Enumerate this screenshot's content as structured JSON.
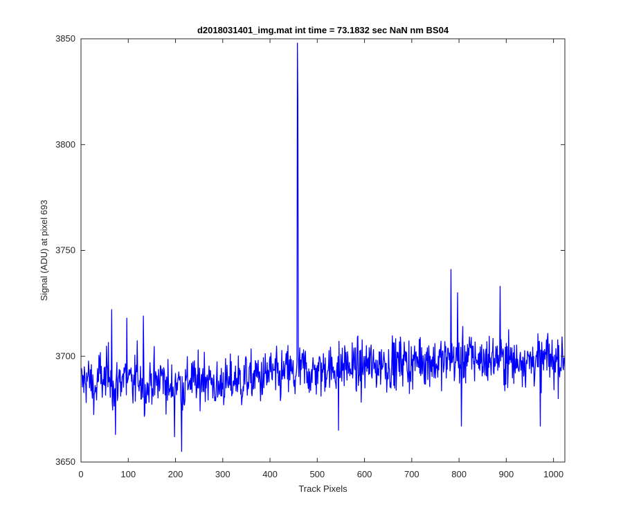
{
  "chart_data": {
    "type": "line",
    "title": "d2018031401_img.mat int time = 73.1832 sec  NaN nm BS04",
    "xlabel": "Track Pixels",
    "ylabel": "Signal (ADU) at pixel 693",
    "xlim": [
      0,
      1024
    ],
    "ylim": [
      3650,
      3850
    ],
    "xticks": [
      0,
      100,
      200,
      300,
      400,
      500,
      600,
      700,
      800,
      900,
      1000
    ],
    "yticks": [
      3650,
      3700,
      3750,
      3800,
      3850
    ],
    "grid": false,
    "legend": "none",
    "colors": {
      "line": "#0000ff",
      "axes": "#262626",
      "background": "#ffffff"
    },
    "series": [
      {
        "x_step": 10,
        "x_start": 0,
        "sampled_values": [
          3686,
          3690,
          3688,
          3683,
          3692,
          3687,
          3695,
          3682,
          3689,
          3691,
          3688,
          3685,
          3693,
          3687,
          3684,
          3690,
          3686,
          3691,
          3688,
          3683,
          3689,
          3687,
          3685,
          3690,
          3688,
          3686,
          3692,
          3689,
          3687,
          3684,
          3689,
          3686,
          3688,
          3690,
          3687,
          3691,
          3688,
          3692,
          3689,
          3690,
          3693,
          3691,
          3689,
          3692,
          3694,
          3690,
          3692,
          3695,
          3693,
          3691,
          3694,
          3692,
          3696,
          3693,
          3695,
          3694,
          3697,
          3694,
          3696,
          3693,
          3695,
          3697,
          3694,
          3696,
          3698,
          3695,
          3697,
          3696,
          3699,
          3697,
          3695,
          3698,
          3700,
          3697,
          3699,
          3696,
          3698,
          3697,
          3700,
          3698,
          3697,
          3699,
          3701,
          3698,
          3700,
          3697,
          3699,
          3698,
          3700,
          3697,
          3699,
          3698,
          3696,
          3700,
          3698,
          3697,
          3699,
          3697,
          3698,
          3700,
          3697,
          3699,
          3698
        ],
        "spikes": [
          {
            "x": 65,
            "y": 3722
          },
          {
            "x": 73,
            "y": 3663
          },
          {
            "x": 97,
            "y": 3718
          },
          {
            "x": 132,
            "y": 3719
          },
          {
            "x": 198,
            "y": 3662
          },
          {
            "x": 213,
            "y": 3655
          },
          {
            "x": 458,
            "y": 3848
          },
          {
            "x": 459,
            "y": 3820
          },
          {
            "x": 545,
            "y": 3665
          },
          {
            "x": 783,
            "y": 3741
          },
          {
            "x": 797,
            "y": 3730
          },
          {
            "x": 805,
            "y": 3667
          },
          {
            "x": 887,
            "y": 3733
          },
          {
            "x": 972,
            "y": 3667
          }
        ]
      }
    ]
  }
}
